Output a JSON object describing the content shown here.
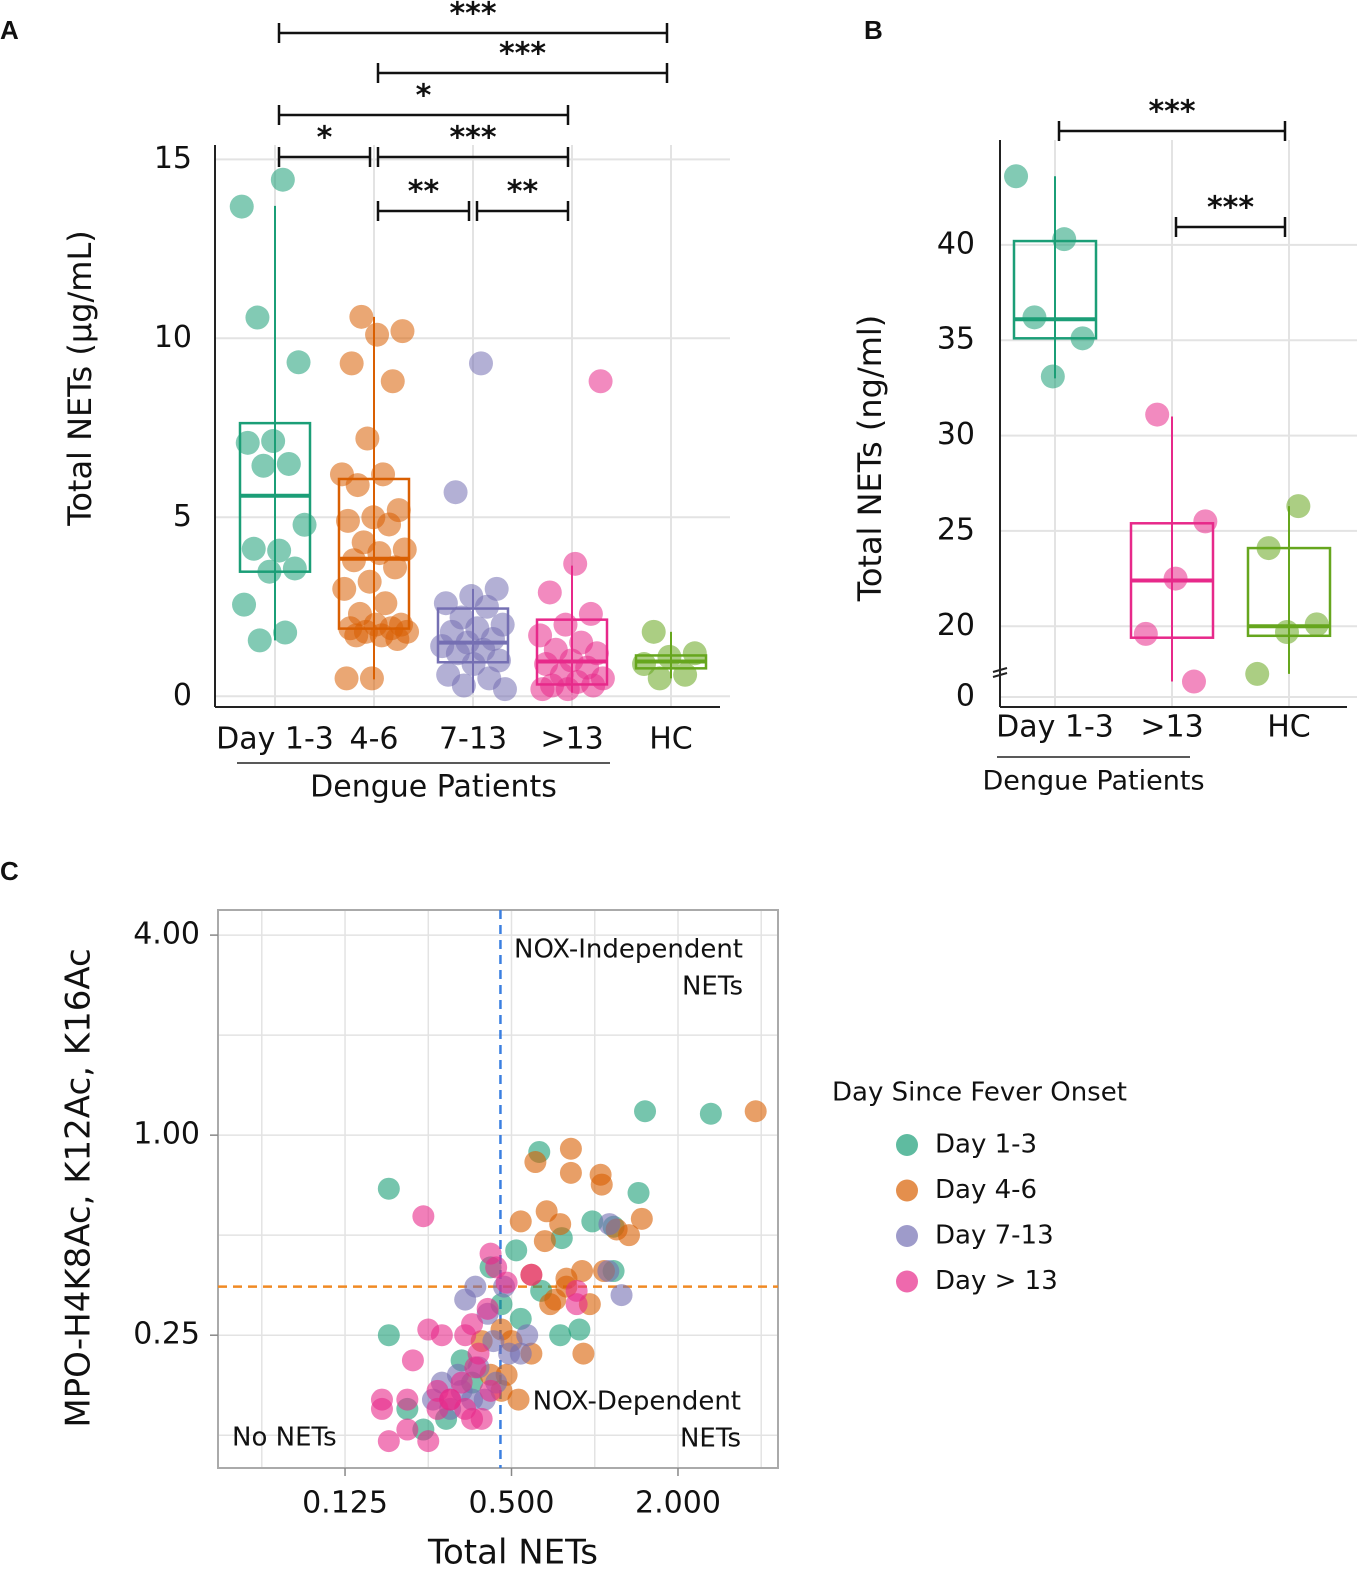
{
  "chart_data": [
    {
      "type": "box",
      "panel": "A",
      "ylabel": "Total NETs (µg/mL)",
      "categories": [
        "Day 1-3",
        "4-6",
        "7-13",
        ">13",
        "HC"
      ],
      "group": {
        "label": "Dengue Patients",
        "from": 0,
        "to": 3
      },
      "ylim": [
        -0.3,
        15.4
      ],
      "yticks": [
        0,
        5,
        10,
        15
      ],
      "grid": true,
      "boxes": [
        {
          "color": "#1b9e77",
          "q1": 3.48,
          "median": 5.6,
          "q3": 7.63,
          "whisker_low": 1.56,
          "whisker_high": 13.7,
          "points": [
            13.68,
            14.43,
            10.58,
            9.33,
            7.13,
            7.08,
            6.49,
            6.44,
            4.79,
            4.07,
            4.12,
            3.57,
            3.48,
            2.56,
            1.78,
            1.56
          ]
        },
        {
          "color": "#d95f02",
          "q1": 1.89,
          "median": 3.84,
          "q3": 6.07,
          "whisker_low": 0.47,
          "whisker_high": 10.6,
          "points": [
            10.6,
            10.2,
            10.1,
            9.3,
            8.8,
            7.2,
            6.2,
            6.2,
            5.9,
            5.2,
            5.0,
            4.9,
            4.8,
            4.3,
            4.1,
            4.0,
            3.8,
            3.6,
            3.2,
            3.0,
            2.6,
            2.3,
            2.0,
            2.0,
            1.9,
            1.9,
            1.8,
            1.8,
            1.7,
            1.7,
            1.6,
            0.5,
            0.5
          ]
        },
        {
          "color": "#7570b3",
          "q1": 0.95,
          "median": 1.5,
          "q3": 2.45,
          "whisker_low": 0.1,
          "whisker_high": 3.0,
          "points": [
            9.3,
            5.7,
            3.0,
            2.8,
            2.6,
            2.5,
            2.2,
            2.0,
            1.9,
            1.8,
            1.6,
            1.5,
            1.4,
            1.3,
            1.2,
            1.0,
            0.9,
            0.6,
            0.5,
            0.3,
            0.2
          ]
        },
        {
          "color": "#e7298a",
          "q1": 0.33,
          "median": 0.97,
          "q3": 2.14,
          "whisker_low": 0.1,
          "whisker_high": 3.65,
          "points": [
            8.8,
            3.7,
            2.9,
            2.3,
            2.0,
            1.7,
            1.5,
            1.3,
            1.2,
            1.0,
            0.9,
            0.8,
            0.6,
            0.5,
            0.4,
            0.3,
            0.3,
            0.2,
            0.2
          ]
        },
        {
          "color": "#66a61e",
          "q1": 0.78,
          "median": 0.97,
          "q3": 1.14,
          "whisker_low": 0.5,
          "whisker_high": 1.8,
          "points": [
            1.8,
            1.2,
            1.1,
            0.9,
            0.6,
            0.5
          ]
        }
      ],
      "brackets": [
        {
          "from": 0,
          "to": 4,
          "label": "***"
        },
        {
          "from": 1,
          "to": 4,
          "label": "***"
        },
        {
          "from": 0,
          "to": 3,
          "label": "*"
        },
        {
          "from": 0,
          "to": 1,
          "label": "*"
        },
        {
          "from": 1,
          "to": 3,
          "label": "***"
        },
        {
          "from": 1,
          "to": 2,
          "label": "**"
        },
        {
          "from": 2,
          "to": 3,
          "label": "**"
        }
      ]
    },
    {
      "type": "box",
      "panel": "B",
      "ylabel": "Total NETs (ng/ml)",
      "categories": [
        "Day 1-3",
        ">13",
        "HC"
      ],
      "group": {
        "label": "Dengue Patients",
        "from": 0,
        "to": 1
      },
      "ylim": [
        0,
        45.5
      ],
      "axis_break": [
        0,
        16.5
      ],
      "yticks": [
        0,
        20,
        25,
        30,
        35,
        40
      ],
      "grid": true,
      "boxes": [
        {
          "color": "#1b9e77",
          "q1": 35.1,
          "median": 36.1,
          "q3": 40.2,
          "whisker_low": 33.0,
          "whisker_high": 43.6,
          "points": [
            43.6,
            40.3,
            36.2,
            35.1,
            33.1
          ]
        },
        {
          "color": "#e7298a",
          "q1": 19.4,
          "median": 22.4,
          "q3": 25.4,
          "whisker_low": 17.1,
          "whisker_high": 31.0,
          "points": [
            31.1,
            25.5,
            22.5,
            19.6,
            17.1
          ]
        },
        {
          "color": "#66a61e",
          "q1": 19.5,
          "median": 20.0,
          "q3": 24.1,
          "whisker_low": 17.5,
          "whisker_high": 26.3,
          "points": [
            26.3,
            24.1,
            20.1,
            19.7,
            17.5
          ]
        }
      ],
      "brackets": [
        {
          "from": 0,
          "to": 2,
          "label": "***"
        },
        {
          "from": 1,
          "to": 2,
          "label": "***"
        }
      ]
    },
    {
      "type": "scatter",
      "panel": "C",
      "xlabel": "Total NETs",
      "ylabel": "MPO-H4K8Ac, K12Ac, K16Ac",
      "xscale": "log2",
      "yscale": "log2",
      "xlim": [
        0.0434,
        4.6
      ],
      "ylim": [
        0.0996,
        4.76
      ],
      "xticks": [
        0.125,
        {
          "value": 0.5,
          "label": "0.500"
        },
        {
          "value": 2,
          "label": "2.000"
        }
      ],
      "yticks": [
        {
          "value": 4,
          "label": "4.00"
        },
        {
          "value": 1,
          "label": "1.00"
        },
        0.25
      ],
      "xgrid": [
        0.0625,
        0.125,
        0.25,
        0.5,
        1,
        2,
        4
      ],
      "ygrid": [
        0.125,
        0.25,
        0.5,
        1,
        2,
        4
      ],
      "vline": {
        "value": 0.456,
        "color": "#3b7fe0"
      },
      "hline": {
        "value": 0.35,
        "color": "#f08a24"
      },
      "annotations": [
        [
          "NOX-Independent",
          "NETs"
        ],
        [
          "NOX-Dependent",
          "NETs"
        ],
        [
          "No NETs"
        ]
      ],
      "legend_title": "Day Since Fever Onset",
      "series": [
        {
          "name": "Day 1-3",
          "color": "#1b9e77",
          "x": [
            1.52,
            2.63,
            0.63,
            1.44,
            0.98,
            1.17,
            0.76,
            0.52,
            0.54,
            0.75,
            0.88,
            1.17,
            0.18,
            0.18,
            0.21,
            0.24,
            0.29,
            0.42,
            0.46,
            0.36,
            0.33,
            0.64
          ],
          "y": [
            1.18,
            1.16,
            0.89,
            0.67,
            0.55,
            0.53,
            0.49,
            0.45,
            0.28,
            0.25,
            0.26,
            0.39,
            0.69,
            0.25,
            0.15,
            0.13,
            0.14,
            0.4,
            0.31,
            0.18,
            0.21,
            0.34
          ]
        },
        {
          "name": "Day 4-6",
          "color": "#d95f02",
          "x": [
            3.82,
            0.82,
            0.61,
            0.82,
            1.05,
            1.06,
            0.54,
            0.67,
            0.75,
            0.66,
            1.48,
            1.2,
            1.33,
            1.08,
            0.9,
            0.79,
            0.59,
            0.69,
            0.72,
            0.96,
            0.79,
            0.46,
            0.5,
            0.59,
            0.91,
            0.53,
            0.46,
            0.48,
            0.39,
            0.42
          ],
          "y": [
            1.18,
            0.91,
            0.83,
            0.77,
            0.76,
            0.71,
            0.55,
            0.59,
            0.54,
            0.48,
            0.56,
            0.52,
            0.5,
            0.39,
            0.39,
            0.37,
            0.38,
            0.31,
            0.32,
            0.31,
            0.35,
            0.26,
            0.24,
            0.22,
            0.22,
            0.16,
            0.17,
            0.19,
            0.24,
            0.19
          ]
        },
        {
          "name": "Day 7-13",
          "color": "#7570b3",
          "x": [
            1.13,
            1.25,
            1.12,
            0.47,
            0.37,
            0.34,
            0.41,
            0.57,
            0.54,
            0.49,
            0.43,
            0.38,
            0.32,
            0.28,
            0.33,
            0.36,
            0.4,
            0.44,
            0.26,
            0.3
          ],
          "y": [
            0.54,
            0.33,
            0.39,
            0.35,
            0.35,
            0.32,
            0.29,
            0.25,
            0.22,
            0.22,
            0.24,
            0.2,
            0.19,
            0.18,
            0.17,
            0.16,
            0.16,
            0.18,
            0.16,
            0.15
          ]
        },
        {
          "name": "Day > 13",
          "color": "#e7298a",
          "x": [
            0.24,
            0.42,
            0.44,
            0.48,
            0.86,
            0.86,
            0.59,
            0.41,
            0.36,
            0.25,
            0.28,
            0.34,
            0.22,
            0.38,
            0.37,
            0.33,
            0.27,
            0.3,
            0.27,
            0.34,
            0.39,
            0.36,
            0.17,
            0.21,
            0.17,
            0.21,
            0.25,
            0.18,
            0.3,
            0.42
          ],
          "y": [
            0.57,
            0.44,
            0.4,
            0.36,
            0.34,
            0.31,
            0.38,
            0.3,
            0.27,
            0.26,
            0.25,
            0.25,
            0.21,
            0.22,
            0.2,
            0.18,
            0.17,
            0.16,
            0.15,
            0.15,
            0.14,
            0.14,
            0.16,
            0.16,
            0.15,
            0.13,
            0.12,
            0.12,
            0.16,
            0.17
          ]
        }
      ]
    }
  ]
}
